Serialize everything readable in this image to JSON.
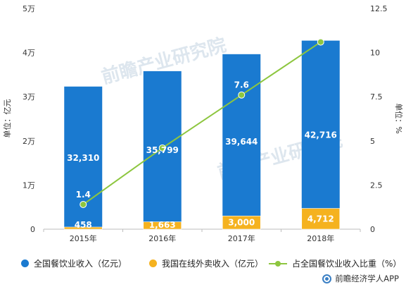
{
  "chart_data": {
    "type": "bar",
    "categories": [
      "2015年",
      "2016年",
      "2017年",
      "2018年"
    ],
    "series": [
      {
        "name": "全国餐饮业收入（亿元）",
        "type": "bar",
        "axis": "left",
        "color": "#1a7ad0",
        "values": [
          32310,
          35799,
          39644,
          42716
        ],
        "labels": [
          "32,310",
          "35,799",
          "39,644",
          "42,716"
        ]
      },
      {
        "name": "我国在线外卖收入（亿元）",
        "type": "bar",
        "axis": "left",
        "color": "#f5b21f",
        "values": [
          458,
          1663,
          3000,
          4712
        ],
        "labels": [
          "458",
          "1,663",
          "3,000",
          "4,712"
        ]
      },
      {
        "name": "占全国餐饮业收入比重（%）",
        "type": "line",
        "axis": "right",
        "color": "#8dc63f",
        "values": [
          1.4,
          4.6,
          7.6,
          10.6
        ],
        "labels": [
          "1.4",
          "",
          "7.6",
          "10.6"
        ]
      }
    ],
    "y_left": {
      "label": "单位：亿元",
      "ticks": [
        "0",
        "1万",
        "2万",
        "3万",
        "4万",
        "5万"
      ],
      "ylim": [
        0,
        50000
      ]
    },
    "y_right": {
      "label": "单位：%",
      "ticks": [
        "0",
        "2.5",
        "5",
        "7.5",
        "10",
        "12.5"
      ],
      "ylim": [
        0,
        12.5
      ]
    },
    "grid": false,
    "legend_position": "bottom"
  },
  "watermark": "前瞻产业研究院",
  "source_text": "前瞻经济学人APP"
}
